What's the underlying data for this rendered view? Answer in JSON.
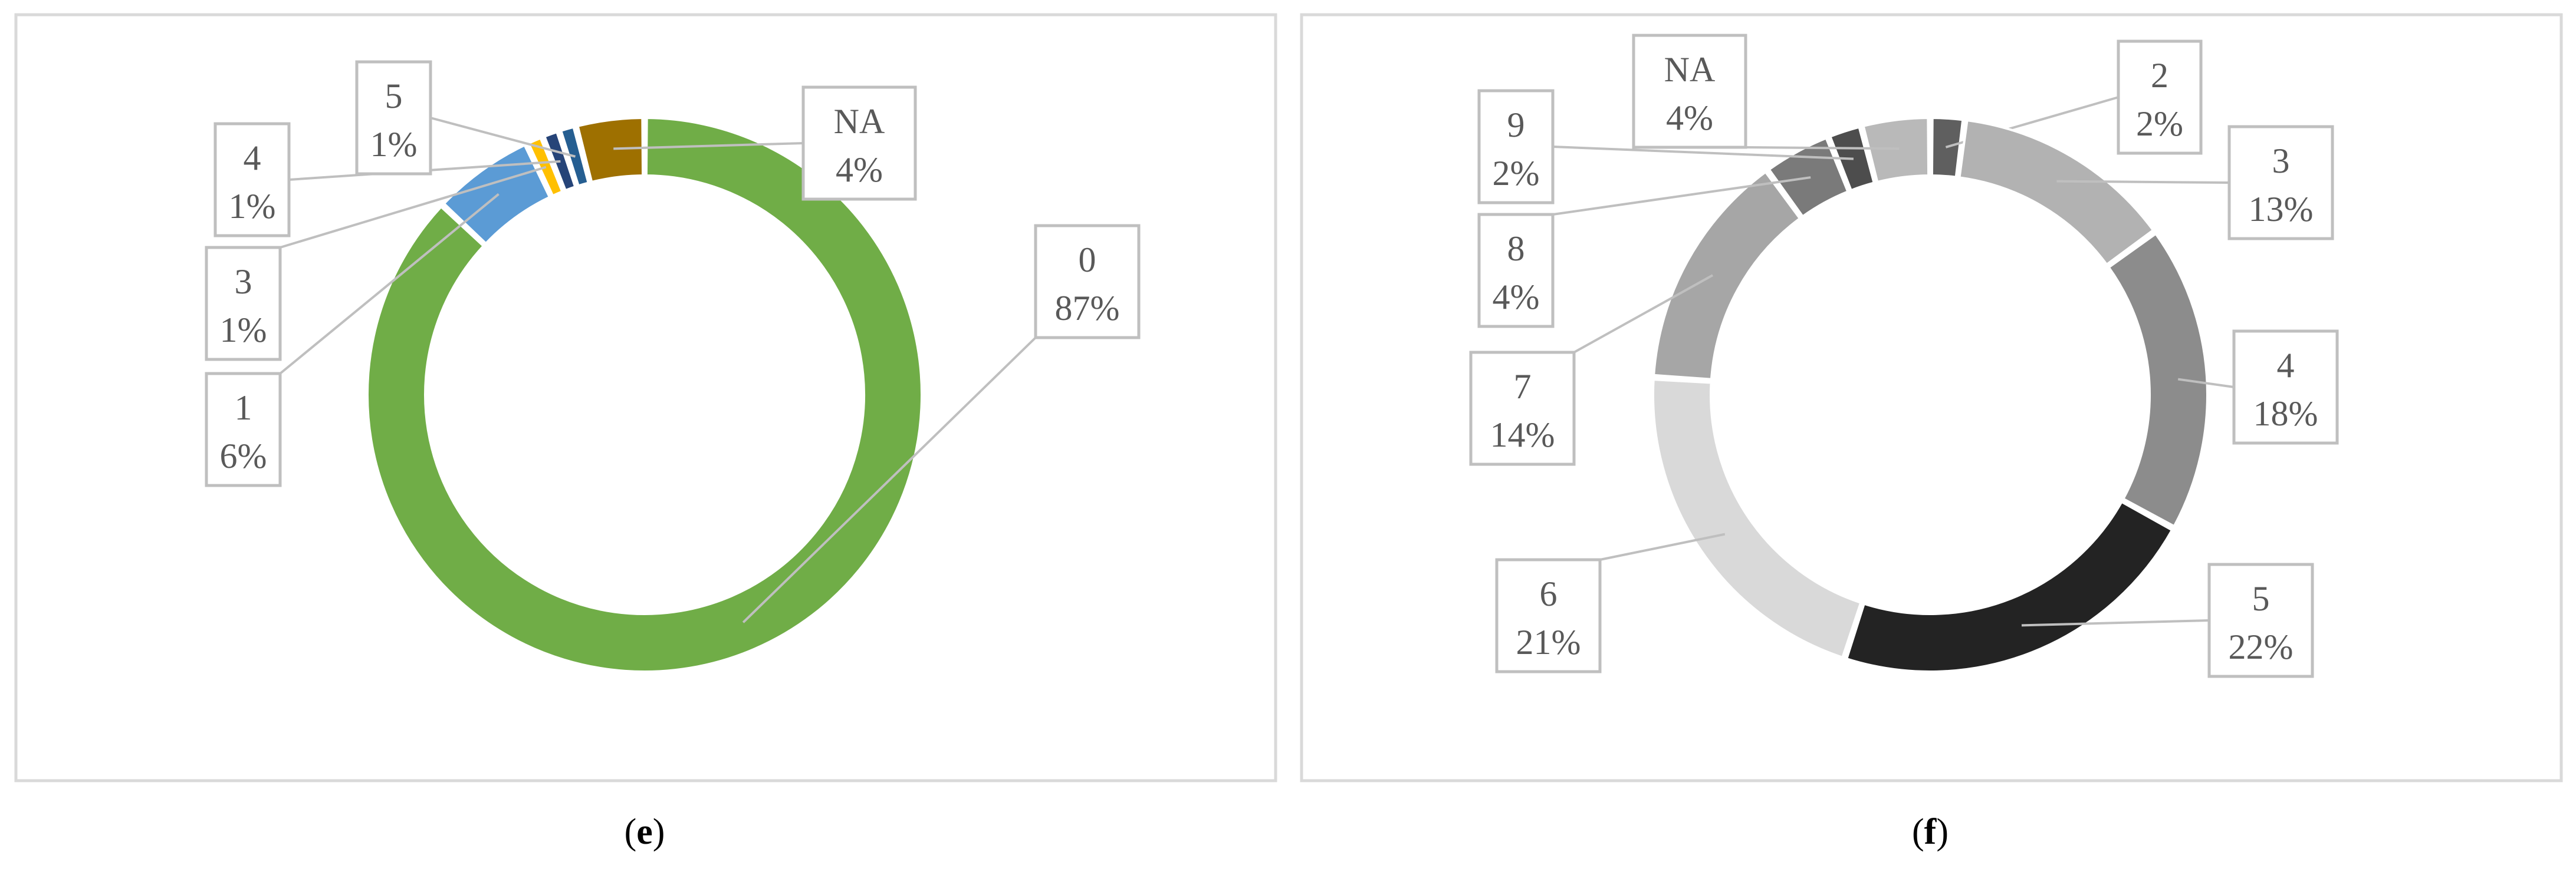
{
  "chart_data": [
    {
      "type": "pie",
      "subtype": "donut",
      "panel_label": "e",
      "slices": [
        {
          "category": "0",
          "percent": 87,
          "color": "#70AD47",
          "label_text": "0",
          "value_text": "87%"
        },
        {
          "category": "1",
          "percent": 6,
          "color": "#5B9BD5",
          "label_text": "1",
          "value_text": "6%"
        },
        {
          "category": "3",
          "percent": 1,
          "color": "#FFC000",
          "label_text": "3",
          "value_text": "1%"
        },
        {
          "category": "4",
          "percent": 1,
          "color": "#264478",
          "label_text": "4",
          "value_text": "1%"
        },
        {
          "category": "5",
          "percent": 1,
          "color": "#255E91",
          "label_text": "5",
          "value_text": "1%"
        },
        {
          "category": "NA",
          "percent": 4,
          "color": "#9E7000",
          "label_text": "NA",
          "value_text": "4%"
        }
      ]
    },
    {
      "type": "pie",
      "subtype": "donut",
      "panel_label": "f",
      "slices": [
        {
          "category": "2",
          "percent": 2,
          "color": "#5F5F5F",
          "label_text": "2",
          "value_text": "2%"
        },
        {
          "category": "3",
          "percent": 13,
          "color": "#B2B2B2",
          "label_text": "3",
          "value_text": "13%"
        },
        {
          "category": "4",
          "percent": 18,
          "color": "#8C8C8C",
          "label_text": "4",
          "value_text": "18%"
        },
        {
          "category": "5",
          "percent": 22,
          "color": "#232323",
          "label_text": "5",
          "value_text": "22%"
        },
        {
          "category": "6",
          "percent": 21,
          "color": "#D9D9D9",
          "label_text": "6",
          "value_text": "21%"
        },
        {
          "category": "7",
          "percent": 14,
          "color": "#A6A6A6",
          "label_text": "7",
          "value_text": "14%"
        },
        {
          "category": "8",
          "percent": 4,
          "color": "#7A7A7A",
          "label_text": "8",
          "value_text": "4%"
        },
        {
          "category": "9",
          "percent": 2,
          "color": "#4D4D4D",
          "label_text": "9",
          "value_text": "2%"
        },
        {
          "category": "NA",
          "percent": 4,
          "color": "#B9B9B9",
          "label_text": "NA",
          "value_text": "4%"
        }
      ]
    }
  ],
  "colors": {
    "frame": "#D9D9D9",
    "callout_border": "#BFBFBF",
    "leader_line": "#BFBFBF",
    "text": "#595959"
  }
}
